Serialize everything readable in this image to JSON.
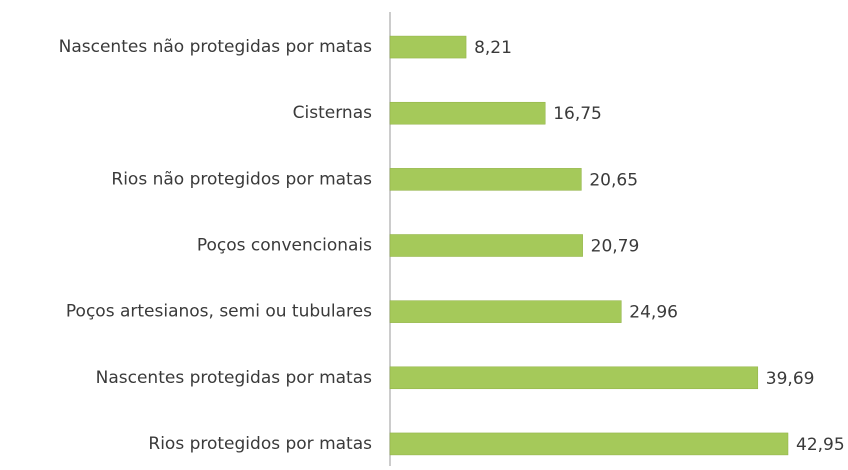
{
  "chart_data": {
    "type": "bar",
    "orientation": "horizontal",
    "categories": [
      "Nascentes não protegidas por matas",
      "Cisternas",
      "Rios não protegidos por matas",
      "Poços convencionais",
      "Poços artesianos, semi ou tubulares",
      "Nascentes protegidas por matas",
      "Rios protegidos por matas"
    ],
    "values": [
      8.21,
      16.75,
      20.65,
      20.79,
      24.96,
      39.69,
      42.95
    ],
    "value_labels": [
      "8,21",
      "16,75",
      "20,65",
      "20,79",
      "24,96",
      "39,69",
      "42,95"
    ],
    "color": "#a5c95a"
  }
}
